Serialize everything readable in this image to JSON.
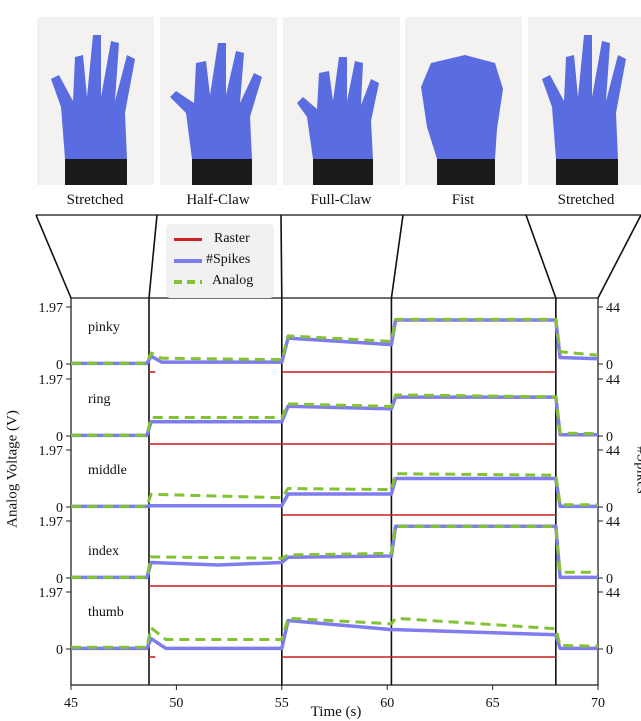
{
  "poses": [
    {
      "label": "Stretched"
    },
    {
      "label": "Half-Claw"
    },
    {
      "label": "Full-Claw"
    },
    {
      "label": "Fist"
    },
    {
      "label": "Stretched"
    }
  ],
  "legend": [
    {
      "label": "Raster",
      "color": "#cc1f1f"
    },
    {
      "label": "#Spikes",
      "color": "#7f7cf0"
    },
    {
      "label": "Analog",
      "color": "#83c232"
    }
  ],
  "chart_data": {
    "type": "line",
    "xlabel": "Time (s)",
    "ylabel_left": "Analog Voltage (V)",
    "ylabel_right": "#Spikes",
    "xlim": [
      45,
      70
    ],
    "xticks": [
      45,
      50,
      55,
      60,
      65,
      70
    ],
    "ylim_voltage": [
      0,
      1.97
    ],
    "ylim_spikes": [
      0,
      44
    ],
    "left_tick_labels": [
      "1.97",
      "0"
    ],
    "right_tick_labels": [
      "44",
      "0"
    ],
    "transitions": [
      48.7,
      55.0,
      60.2,
      68.0
    ],
    "colors": {
      "raster": "#cc1f1f",
      "spikes": "#7f7cf0",
      "analog": "#83c232"
    },
    "panels": [
      {
        "name": "pinky",
        "analog": [
          [
            45,
            0.02
          ],
          [
            48.6,
            0.02
          ],
          [
            48.8,
            0.38
          ],
          [
            49.3,
            0.2
          ],
          [
            55.0,
            0.15
          ],
          [
            55.3,
            0.97
          ],
          [
            60.2,
            0.78
          ],
          [
            60.4,
            1.54
          ],
          [
            68.0,
            1.54
          ],
          [
            68.2,
            0.42
          ],
          [
            70,
            0.3
          ]
        ],
        "spikes": [
          [
            45,
            0.5
          ],
          [
            48.6,
            0.5
          ],
          [
            48.8,
            6
          ],
          [
            49.3,
            1.5
          ],
          [
            55.0,
            1.5
          ],
          [
            55.3,
            20
          ],
          [
            60.2,
            15
          ],
          [
            60.4,
            34
          ],
          [
            68.0,
            34
          ],
          [
            68.2,
            5
          ],
          [
            70,
            4
          ]
        ],
        "raster": [
          [
            48.7,
            49.0
          ],
          [
            55.0,
            68.0
          ]
        ]
      },
      {
        "name": "ring",
        "analog": [
          [
            45,
            0.02
          ],
          [
            48.6,
            0.02
          ],
          [
            48.8,
            0.64
          ],
          [
            55.0,
            0.64
          ],
          [
            55.3,
            1.11
          ],
          [
            60.2,
            1.02
          ],
          [
            60.4,
            1.42
          ],
          [
            68.0,
            1.35
          ],
          [
            68.2,
            0.1
          ],
          [
            70,
            0.08
          ]
        ],
        "spikes": [
          [
            45,
            0.5
          ],
          [
            48.6,
            0.5
          ],
          [
            48.8,
            11
          ],
          [
            55.0,
            11
          ],
          [
            55.3,
            23
          ],
          [
            60.2,
            21
          ],
          [
            60.4,
            30
          ],
          [
            68.0,
            30
          ],
          [
            68.2,
            1
          ],
          [
            70,
            1
          ]
        ],
        "raster": [
          [
            48.7,
            68.0
          ]
        ]
      },
      {
        "name": "middle",
        "analog": [
          [
            45,
            0.02
          ],
          [
            48.6,
            0.02
          ],
          [
            48.8,
            0.44
          ],
          [
            55.0,
            0.32
          ],
          [
            55.3,
            0.64
          ],
          [
            60.2,
            0.6
          ],
          [
            60.4,
            1.15
          ],
          [
            68.0,
            1.1
          ],
          [
            68.2,
            0.08
          ],
          [
            70,
            0.08
          ]
        ],
        "spikes": [
          [
            45,
            0.5
          ],
          [
            48.6,
            0.5
          ],
          [
            48.8,
            1
          ],
          [
            55.0,
            1
          ],
          [
            55.3,
            10
          ],
          [
            60.2,
            10
          ],
          [
            60.4,
            22
          ],
          [
            68.0,
            22
          ],
          [
            68.2,
            0.5
          ],
          [
            70,
            0.5
          ]
        ],
        "raster": [
          [
            55.0,
            68.0
          ]
        ]
      },
      {
        "name": "index",
        "analog": [
          [
            45,
            0.02
          ],
          [
            48.6,
            0.02
          ],
          [
            48.8,
            0.73
          ],
          [
            55.0,
            0.68
          ],
          [
            55.3,
            0.8
          ],
          [
            60.2,
            0.85
          ],
          [
            60.4,
            1.78
          ],
          [
            68.0,
            1.78
          ],
          [
            68.2,
            0.2
          ],
          [
            70,
            0.2
          ]
        ],
        "spikes": [
          [
            45,
            0.5
          ],
          [
            48.6,
            0.5
          ],
          [
            48.8,
            12
          ],
          [
            52.0,
            10
          ],
          [
            55.0,
            12
          ],
          [
            55.3,
            16
          ],
          [
            60.2,
            17
          ],
          [
            60.4,
            40
          ],
          [
            68.0,
            40
          ],
          [
            68.2,
            0.5
          ],
          [
            70,
            0.5
          ]
        ],
        "raster": [
          [
            48.7,
            68.0
          ]
        ]
      },
      {
        "name": "thumb",
        "analog": [
          [
            45,
            0.06
          ],
          [
            48.6,
            0.06
          ],
          [
            48.8,
            0.73
          ],
          [
            49.5,
            0.33
          ],
          [
            55.0,
            0.33
          ],
          [
            55.3,
            1.06
          ],
          [
            60.2,
            0.87
          ],
          [
            60.4,
            1.06
          ],
          [
            68.0,
            0.7
          ],
          [
            68.2,
            0.12
          ],
          [
            70,
            0.1
          ]
        ],
        "spikes": [
          [
            45,
            0.5
          ],
          [
            48.6,
            0.5
          ],
          [
            48.8,
            8
          ],
          [
            49.5,
            0.5
          ],
          [
            55.0,
            0.5
          ],
          [
            55.3,
            22
          ],
          [
            60.2,
            15
          ],
          [
            60.4,
            15
          ],
          [
            68.0,
            11
          ],
          [
            68.2,
            0.5
          ],
          [
            70,
            0.5
          ]
        ],
        "raster": [
          [
            48.7,
            49.0
          ],
          [
            55.0,
            68.0
          ]
        ]
      }
    ]
  }
}
